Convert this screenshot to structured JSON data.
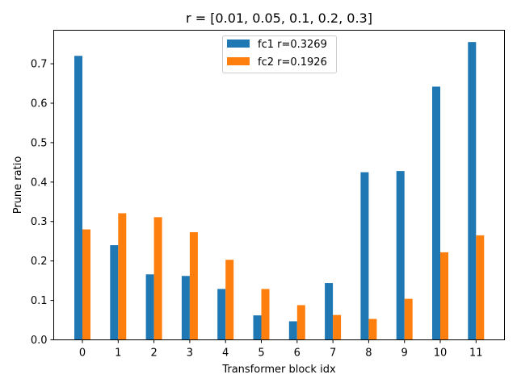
{
  "chart_data": {
    "type": "bar",
    "title": "r = [0.01, 0.05, 0.1, 0.2, 0.3]",
    "xlabel": "Transformer block idx",
    "ylabel": "Prune ratio",
    "categories": [
      "0",
      "1",
      "2",
      "3",
      "4",
      "5",
      "6",
      "7",
      "8",
      "9",
      "10",
      "11"
    ],
    "ylim": [
      0,
      0.785
    ],
    "yticks": [
      0.0,
      0.1,
      0.2,
      0.3,
      0.4,
      0.5,
      0.6,
      0.7
    ],
    "ytick_labels": [
      "0.0",
      "0.1",
      "0.2",
      "0.3",
      "0.4",
      "0.5",
      "0.6",
      "0.7"
    ],
    "grid": false,
    "legend_position": "upper center",
    "series": [
      {
        "name": "fc1 r=0.3269",
        "color": "#1f77b4",
        "values": [
          0.72,
          0.24,
          0.166,
          0.162,
          0.129,
          0.062,
          0.047,
          0.144,
          0.425,
          0.428,
          0.642,
          0.755
        ]
      },
      {
        "name": "fc2 r=0.1926",
        "color": "#ff7f0e",
        "values": [
          0.28,
          0.321,
          0.311,
          0.273,
          0.203,
          0.129,
          0.088,
          0.063,
          0.053,
          0.104,
          0.222,
          0.265
        ]
      }
    ]
  }
}
